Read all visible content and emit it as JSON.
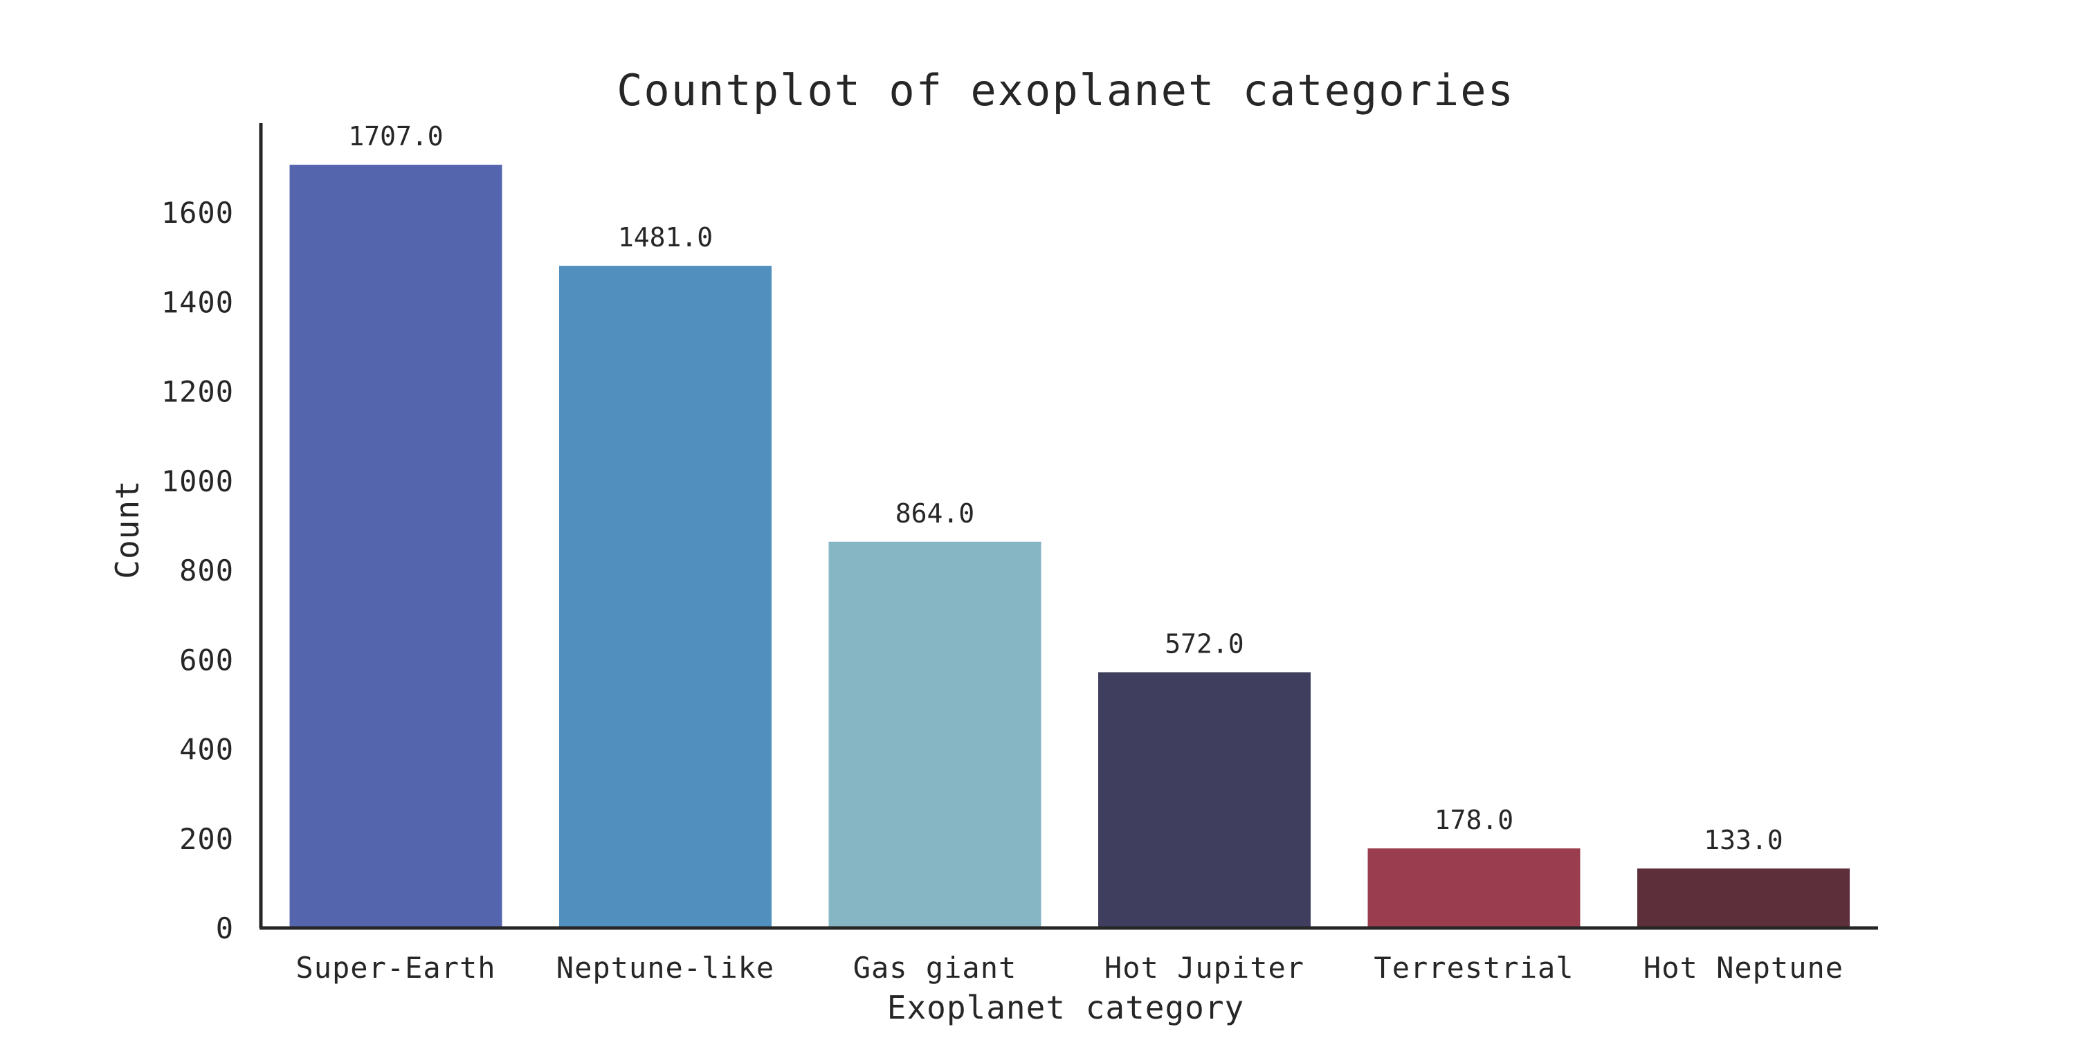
{
  "chart_data": {
    "type": "bar",
    "title": "Countplot of exoplanet categories",
    "xlabel": "Exoplanet category",
    "ylabel": "Count",
    "categories": [
      "Super-Earth",
      "Neptune-like",
      "Gas giant",
      "Hot Jupiter",
      "Terrestrial",
      "Hot Neptune"
    ],
    "values": [
      1707,
      1481,
      864,
      572,
      178,
      133
    ],
    "data_labels": [
      "1707.0",
      "1481.0",
      "864.0",
      "572.0",
      "178.0",
      "133.0"
    ],
    "colors": [
      "#5465ad",
      "#508fbe",
      "#86b5c3",
      "#3f3e5e",
      "#9a3d4e",
      "#5c2f3b"
    ],
    "yticks": [
      "0",
      "200",
      "400",
      "600",
      "800",
      "1000",
      "1200",
      "1400",
      "1600"
    ],
    "ytick_values": [
      0,
      200,
      400,
      600,
      800,
      1000,
      1200,
      1400,
      1600
    ],
    "ylim": [
      0,
      1800
    ],
    "grid": false,
    "legend": "none"
  }
}
